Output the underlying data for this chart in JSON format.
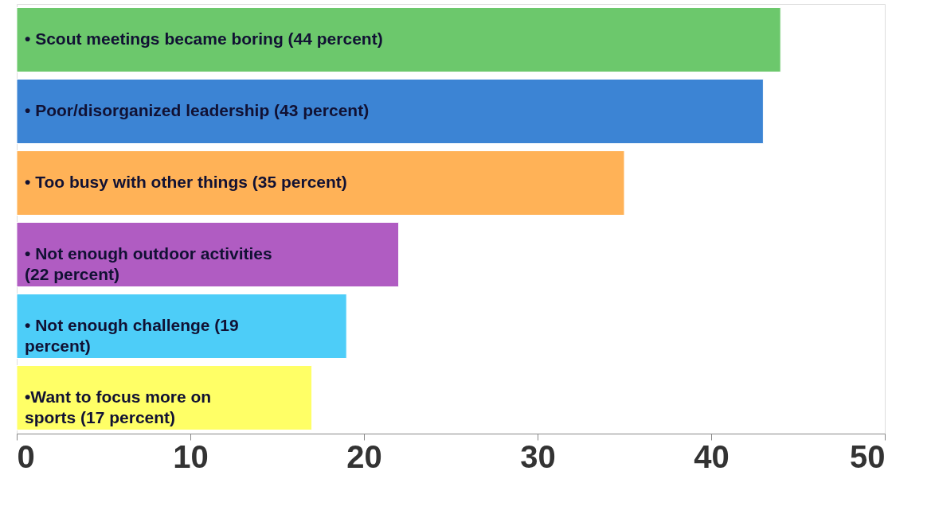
{
  "chart_data": {
    "type": "bar",
    "orientation": "horizontal",
    "categories": [
      "• Scout meetings became boring (44 percent)",
      "• Poor/disorganized leadership (43 percent)",
      "• Too busy with other things (35 percent)",
      "• Not enough outdoor activities (22 percent)",
      "• Not enough challenge (19 percent)",
      "•Want to focus more on sports (17 percent)"
    ],
    "values": [
      44,
      43,
      35,
      22,
      19,
      17
    ],
    "colors": [
      "#6cc86c",
      "#3c84d4",
      "#ffb257",
      "#b05cc2",
      "#4dcdf8",
      "#ffff66"
    ],
    "xlim": [
      0,
      50
    ],
    "xticks": [
      0,
      10,
      20,
      30,
      40,
      50
    ],
    "grid": false
  }
}
